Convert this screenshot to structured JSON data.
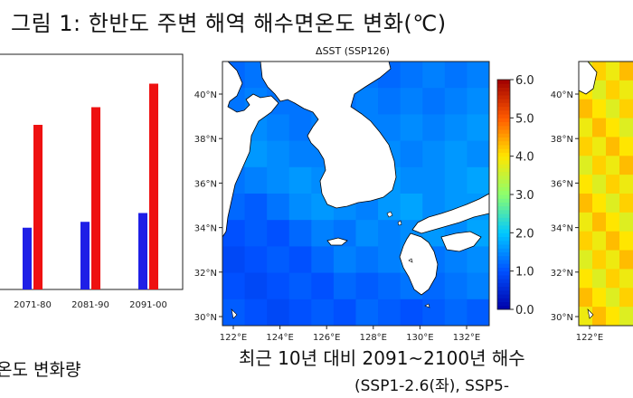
{
  "figure": {
    "title": "그림 1: 한반도 주변 해역 해수면온도 변화(℃)",
    "left_caption": "온도 변화량",
    "right_caption_line1": "최근 10년 대비 2091~2100년 해수",
    "right_caption_line2": "(SSP1-2.6(좌), SSP5-"
  },
  "chart_data": [
    {
      "type": "bar",
      "title": "",
      "categories": [
        "2071-80",
        "2081-90",
        "2091-00"
      ],
      "series": [
        {
          "color": "#1f1fe6",
          "values": [
            2.1,
            2.3,
            2.6
          ]
        },
        {
          "color": "#ee1111",
          "values": [
            5.6,
            6.2,
            7.0
          ]
        }
      ],
      "ylim": [
        0,
        8
      ],
      "grid": false
    },
    {
      "type": "heatmap",
      "title": "ΔSST (SSP126)",
      "x_ticks": [
        "122°E",
        "124°E",
        "126°E",
        "128°E",
        "130°E",
        "132°E"
      ],
      "y_ticks": [
        "30°N",
        "32°N",
        "34°N",
        "36°N",
        "38°N",
        "40°N"
      ],
      "colorbar_ticks": [
        "0.0",
        "1.0",
        "2.0",
        "3.0",
        "4.0",
        "5.0",
        "6.0"
      ],
      "colorbar_range": [
        0,
        6
      ],
      "colormap": [
        "#0000a8",
        "#0050ff",
        "#00c8ff",
        "#8cff6e",
        "#ffe600",
        "#ff5a00",
        "#a00000"
      ],
      "sea_values": [
        [
          1.2,
          1.3,
          1.3,
          1.2,
          1.3,
          1.4,
          1.3,
          1.2,
          1.3,
          1.4,
          1.3,
          1.4
        ],
        [
          1.3,
          1.4,
          1.3,
          1.3,
          1.4,
          1.3,
          1.4,
          1.3,
          1.4,
          1.3,
          1.4,
          1.5
        ],
        [
          1.4,
          1.5,
          1.4,
          1.3,
          1.4,
          1.5,
          1.4,
          1.4,
          1.5,
          1.4,
          1.5,
          1.6
        ],
        [
          1.5,
          1.6,
          1.5,
          1.4,
          1.4,
          1.5,
          1.6,
          1.5,
          1.4,
          1.5,
          1.6,
          1.5
        ],
        [
          1.3,
          1.4,
          1.5,
          1.6,
          1.5,
          1.4,
          1.5,
          1.6,
          1.5,
          1.5,
          1.6,
          1.7
        ],
        [
          1.2,
          1.1,
          1.3,
          1.5,
          1.6,
          1.5,
          1.4,
          1.6,
          1.7,
          1.5,
          1.6,
          1.6
        ],
        [
          1.0,
          1.1,
          1.0,
          1.2,
          1.4,
          1.3,
          1.5,
          1.4,
          1.5,
          1.6,
          1.5,
          1.7
        ],
        [
          0.9,
          1.0,
          1.1,
          1.0,
          1.2,
          1.4,
          1.3,
          1.4,
          1.5,
          1.3,
          1.4,
          1.5
        ],
        [
          1.0,
          0.9,
          1.0,
          1.1,
          1.0,
          1.2,
          1.1,
          1.2,
          1.3,
          1.2,
          1.3,
          1.4
        ],
        [
          1.1,
          1.0,
          0.9,
          1.0,
          1.1,
          1.0,
          1.2,
          1.1,
          1.0,
          1.1,
          1.2,
          1.1
        ]
      ]
    },
    {
      "type": "heatmap",
      "title": "",
      "y_ticks": [
        "30°N",
        "32°N",
        "34°N",
        "36°N",
        "38°N",
        "40°N"
      ],
      "x_ticks": [
        "122°E"
      ]
    }
  ]
}
